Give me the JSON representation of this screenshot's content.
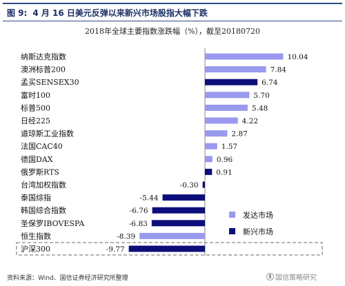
{
  "header": {
    "figure_label": "图 9:",
    "figure_title": "4 月 16 日美元反弹以来新兴市场股指大幅下跌"
  },
  "source_note": "资料来源：Wind、国信证券经济研究所整理",
  "watermark_text": "国信策略研究",
  "colors": {
    "developed": "#9999ee",
    "emerging": "#0d0d7a",
    "header_rule": "#2b4a86"
  },
  "chart_data": {
    "type": "bar",
    "orientation": "horizontal",
    "title": "2018年全球主要指数涨跌幅（%），截至20180720",
    "xlabel": "",
    "ylabel": "",
    "xlim": [
      -11,
      11
    ],
    "grid": false,
    "legend_position": "bottom-right",
    "categories": [
      "纳斯达克指数",
      "澳洲标普200",
      "孟买SENSEX30",
      "富时100",
      "标普500",
      "日经225",
      "道琼斯工业指数",
      "法国CAC40",
      "德国DAX",
      "俄罗斯RTS",
      "台湾加权指数",
      "泰国综指",
      "韩国综合指数",
      "圣保罗IBOVESPA",
      "恒生指数",
      "沪深300"
    ],
    "values": [
      10.04,
      7.84,
      6.74,
      5.7,
      5.48,
      4.22,
      2.87,
      1.57,
      0.96,
      0.91,
      -0.3,
      -5.44,
      -6.76,
      -6.83,
      -8.39,
      -9.77
    ],
    "value_labels": [
      "10.04",
      "7.84",
      "6.74",
      "5.70",
      "5.48",
      "4.22",
      "2.87",
      "1.57",
      "0.96",
      "0.91",
      "-0.30",
      "-5.44",
      "-6.76",
      "-6.83",
      "-8.39",
      "-9.77"
    ],
    "groups": [
      "发达市场",
      "发达市场",
      "新兴市场",
      "发达市场",
      "发达市场",
      "发达市场",
      "发达市场",
      "发达市场",
      "发达市场",
      "新兴市场",
      "新兴市场",
      "新兴市场",
      "新兴市场",
      "新兴市场",
      "发达市场",
      "新兴市场"
    ],
    "legend": [
      {
        "name": "发达市场",
        "color": "#9999ee"
      },
      {
        "name": "新兴市场",
        "color": "#0d0d7a"
      }
    ],
    "highlighted_category": "沪深300"
  }
}
